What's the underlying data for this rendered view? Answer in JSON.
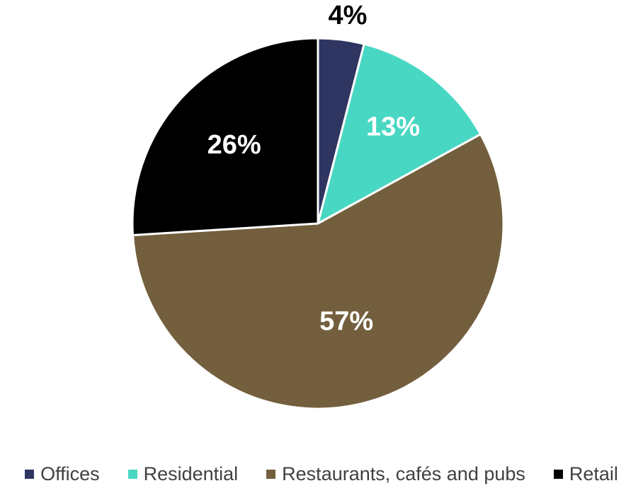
{
  "chart_data": {
    "type": "pie",
    "categories": [
      "Offices",
      "Residential",
      "Restaurants, cafés and pubs",
      "Retail"
    ],
    "values": [
      4,
      13,
      57,
      26
    ],
    "value_labels": [
      "4%",
      "13%",
      "57%",
      "26%"
    ],
    "colors": [
      "#2e3560",
      "#48d7c2",
      "#735f3d",
      "#000000"
    ],
    "label_colors": [
      "#000000",
      "#ffffff",
      "#ffffff",
      "#ffffff"
    ],
    "legend_position": "bottom",
    "start": "12 o'clock",
    "direction": "clockwise"
  }
}
